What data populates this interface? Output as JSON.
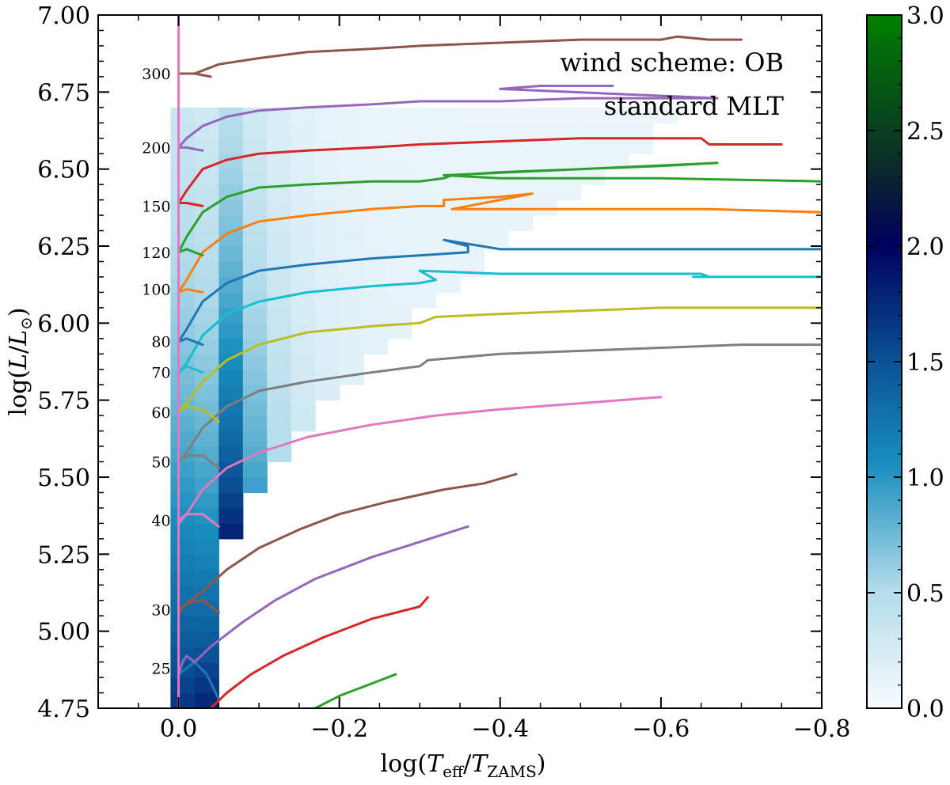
{
  "chart_data": {
    "type": "heatmap",
    "title": "",
    "xlabel": "log(T_eff/T_ZAMS)",
    "ylabel": "log(L/L_⊙)",
    "xlim": [
      0.1,
      -0.8
    ],
    "ylim": [
      4.75,
      7.0
    ],
    "x_ticks": [
      "0.0",
      "−0.2",
      "−0.4",
      "−0.6",
      "−0.8"
    ],
    "x_tick_values": [
      0.0,
      -0.2,
      -0.4,
      -0.6,
      -0.8
    ],
    "y_ticks": [
      "4.75",
      "5.00",
      "5.25",
      "5.50",
      "5.75",
      "6.00",
      "6.25",
      "6.50",
      "6.75",
      "7.00"
    ],
    "y_tick_values": [
      4.75,
      5.0,
      5.25,
      5.5,
      5.75,
      6.0,
      6.25,
      6.5,
      6.75,
      7.0
    ],
    "annotations": [
      "wind scheme: OB",
      "standard MLT"
    ],
    "colorbar": {
      "min": 0.0,
      "max": 3.0,
      "ticks": [
        "0.0",
        "0.5",
        "1.0",
        "1.5",
        "2.0",
        "2.5",
        "3.0"
      ],
      "tick_values": [
        0.0,
        0.5,
        1.0,
        1.5,
        2.0,
        2.5,
        3.0
      ],
      "colors": [
        "#f7fbff",
        "#0b88b8",
        "#00005e",
        "#006600",
        "#008000"
      ]
    },
    "zams_line": {
      "x": 0.0,
      "color": "#e377c2"
    },
    "mass_labels": [
      {
        "text": "25",
        "y": 4.88
      },
      {
        "text": "30",
        "y": 5.07
      },
      {
        "text": "40",
        "y": 5.36
      },
      {
        "text": "50",
        "y": 5.55
      },
      {
        "text": "60",
        "y": 5.71
      },
      {
        "text": "70",
        "y": 5.84
      },
      {
        "text": "80",
        "y": 5.94
      },
      {
        "text": "100",
        "y": 6.11
      },
      {
        "text": "120",
        "y": 6.23
      },
      {
        "text": "150",
        "y": 6.38
      },
      {
        "text": "200",
        "y": 6.57
      },
      {
        "text": "300",
        "y": 6.81
      }
    ],
    "series": [
      {
        "label": "25",
        "color": "#1f77b4",
        "x": [
          0.0,
          -0.01,
          -0.02,
          -0.035,
          -0.05
        ],
        "y": [
          4.86,
          4.88,
          4.9,
          4.86,
          4.78
        ]
      },
      {
        "label": "25",
        "color": "#2ca02c",
        "x": [
          -0.17,
          -0.2,
          -0.24,
          -0.27
        ],
        "y": [
          4.75,
          4.79,
          4.83,
          4.86
        ]
      },
      {
        "label": "30",
        "color": "#8c564b",
        "x": [
          0.0,
          -0.01,
          -0.03,
          -0.05
        ],
        "y": [
          5.06,
          5.09,
          5.1,
          5.06
        ]
      },
      {
        "label": "30",
        "color": "#9467bd",
        "x": [
          0.0,
          -0.005,
          -0.01,
          -0.02,
          -0.04,
          -0.08,
          -0.12,
          -0.17,
          -0.24,
          -0.3,
          -0.36
        ],
        "y": [
          4.86,
          4.9,
          4.92,
          4.9,
          4.95,
          5.03,
          5.1,
          5.17,
          5.24,
          5.29,
          5.34
        ]
      },
      {
        "label": "30",
        "color": "#d62728",
        "x": [
          -0.04,
          -0.06,
          -0.09,
          -0.13,
          -0.18,
          -0.24,
          -0.3,
          -0.31
        ],
        "y": [
          4.75,
          4.8,
          4.86,
          4.92,
          4.98,
          5.04,
          5.08,
          5.11
        ]
      },
      {
        "label": "40",
        "color": "#8c564b",
        "x": [
          0.0,
          -0.01,
          -0.03,
          -0.06,
          -0.1,
          -0.15,
          -0.2,
          -0.26,
          -0.33,
          -0.38,
          -0.42
        ],
        "y": [
          5.07,
          5.09,
          5.13,
          5.2,
          5.27,
          5.33,
          5.38,
          5.42,
          5.46,
          5.48,
          5.51
        ]
      },
      {
        "label": "40",
        "color": "#e377c2",
        "x": [
          0.0,
          -0.01,
          -0.03,
          -0.05
        ],
        "y": [
          5.36,
          5.38,
          5.38,
          5.34
        ]
      },
      {
        "label": "50",
        "color": "#e377c2",
        "x": [
          0.0,
          -0.01,
          -0.03,
          -0.06,
          -0.1,
          -0.16,
          -0.24,
          -0.32,
          -0.4,
          -0.5,
          -0.6
        ],
        "y": [
          5.35,
          5.38,
          5.46,
          5.53,
          5.58,
          5.63,
          5.67,
          5.7,
          5.72,
          5.74,
          5.76
        ]
      },
      {
        "label": "50",
        "color": "#7f7f7f",
        "x": [
          0.0,
          -0.01,
          -0.03,
          -0.05
        ],
        "y": [
          5.55,
          5.57,
          5.57,
          5.53
        ]
      },
      {
        "label": "60",
        "color": "#7f7f7f",
        "x": [
          0.0,
          -0.01,
          -0.03,
          -0.06,
          -0.1,
          -0.16,
          -0.24,
          -0.3,
          -0.31,
          -0.4,
          -0.5,
          -0.6,
          -0.7,
          -0.8
        ],
        "y": [
          5.55,
          5.58,
          5.66,
          5.73,
          5.78,
          5.81,
          5.84,
          5.86,
          5.88,
          5.9,
          5.91,
          5.92,
          5.93,
          5.93
        ]
      },
      {
        "label": "60",
        "color": "#bcbd22",
        "x": [
          0.0,
          -0.01,
          -0.03,
          -0.05
        ],
        "y": [
          5.71,
          5.73,
          5.72,
          5.68
        ]
      },
      {
        "label": "70",
        "color": "#bcbd22",
        "x": [
          0.0,
          -0.01,
          -0.03,
          -0.06,
          -0.1,
          -0.16,
          -0.24,
          -0.3,
          -0.32,
          -0.4,
          -0.5,
          -0.6,
          -0.66,
          -0.8
        ],
        "y": [
          5.71,
          5.74,
          5.81,
          5.88,
          5.93,
          5.97,
          5.99,
          6.0,
          6.02,
          6.03,
          6.04,
          6.05,
          6.05,
          6.05
        ]
      },
      {
        "label": "70",
        "color": "#17becf",
        "x": [
          0.0,
          -0.01,
          -0.03
        ],
        "y": [
          5.84,
          5.86,
          5.84
        ]
      },
      {
        "label": "80",
        "color": "#17becf",
        "x": [
          0.0,
          -0.01,
          -0.03,
          -0.06,
          -0.1,
          -0.16,
          -0.24,
          -0.3,
          -0.32,
          -0.3,
          -0.4,
          -0.5,
          -0.6,
          -0.65,
          -0.66,
          -0.64,
          -0.8
        ],
        "y": [
          5.84,
          5.87,
          5.96,
          6.03,
          6.07,
          6.1,
          6.12,
          6.13,
          6.14,
          6.17,
          6.16,
          6.16,
          6.16,
          6.16,
          6.15,
          6.15,
          6.15
        ]
      },
      {
        "label": "80",
        "color": "#1f77b4",
        "x": [
          0.0,
          -0.01,
          -0.03
        ],
        "y": [
          5.94,
          5.95,
          5.93
        ]
      },
      {
        "label": "100",
        "color": "#1f77b4",
        "x": [
          0.0,
          -0.01,
          -0.03,
          -0.06,
          -0.1,
          -0.16,
          -0.24,
          -0.3,
          -0.36,
          -0.36,
          -0.33,
          -0.4,
          -0.5,
          -0.6,
          -0.8
        ],
        "y": [
          5.94,
          5.98,
          6.07,
          6.13,
          6.17,
          6.19,
          6.21,
          6.22,
          6.23,
          6.25,
          6.27,
          6.24,
          6.24,
          6.24,
          6.24
        ]
      },
      {
        "label": "100",
        "color": "#ff7f0e",
        "x": [
          0.0,
          -0.01,
          -0.03
        ],
        "y": [
          6.1,
          6.11,
          6.1
        ]
      },
      {
        "label": "120",
        "color": "#ff7f0e",
        "x": [
          0.0,
          -0.01,
          -0.03,
          -0.06,
          -0.1,
          -0.16,
          -0.24,
          -0.3,
          -0.33,
          -0.33,
          -0.4,
          -0.44,
          -0.34,
          -0.4,
          -0.5,
          -0.6,
          -0.66,
          -0.8
        ],
        "y": [
          6.1,
          6.14,
          6.23,
          6.29,
          6.33,
          6.35,
          6.37,
          6.38,
          6.38,
          6.4,
          6.41,
          6.42,
          6.37,
          6.37,
          6.37,
          6.37,
          6.37,
          6.36
        ]
      },
      {
        "label": "120",
        "color": "#2ca02c",
        "x": [
          0.0,
          -0.01,
          -0.03
        ],
        "y": [
          6.23,
          6.24,
          6.22
        ]
      },
      {
        "label": "150",
        "color": "#2ca02c",
        "x": [
          0.0,
          -0.01,
          -0.03,
          -0.06,
          -0.1,
          -0.16,
          -0.24,
          -0.3,
          -0.33,
          -0.34,
          -0.4,
          -0.5,
          -0.6,
          -0.67,
          -0.33,
          -0.4,
          -0.5,
          -0.6,
          -0.8
        ],
        "y": [
          6.23,
          6.28,
          6.36,
          6.41,
          6.44,
          6.45,
          6.46,
          6.46,
          6.47,
          6.48,
          6.49,
          6.5,
          6.51,
          6.52,
          6.48,
          6.47,
          6.47,
          6.47,
          6.46
        ]
      },
      {
        "label": "150",
        "color": "#d62728",
        "x": [
          0.0,
          -0.01,
          -0.03
        ],
        "y": [
          6.39,
          6.39,
          6.38
        ]
      },
      {
        "label": "200",
        "color": "#d62728",
        "x": [
          0.0,
          -0.01,
          -0.03,
          -0.06,
          -0.1,
          -0.16,
          -0.24,
          -0.3,
          -0.4,
          -0.5,
          -0.6,
          -0.65,
          -0.66,
          -0.75
        ],
        "y": [
          6.39,
          6.43,
          6.5,
          6.53,
          6.55,
          6.56,
          6.57,
          6.58,
          6.59,
          6.6,
          6.6,
          6.6,
          6.58,
          6.58
        ]
      },
      {
        "label": "200",
        "color": "#9467bd",
        "x": [
          0.0,
          -0.01,
          -0.03
        ],
        "y": [
          6.57,
          6.57,
          6.56
        ]
      },
      {
        "label": "300",
        "color": "#9467bd",
        "x": [
          0.0,
          -0.01,
          -0.03,
          -0.06,
          -0.1,
          -0.16,
          -0.24,
          -0.3,
          -0.4,
          -0.5,
          -0.6,
          -0.67,
          -0.4,
          -0.45,
          -0.54
        ],
        "y": [
          6.57,
          6.6,
          6.64,
          6.67,
          6.69,
          6.7,
          6.71,
          6.72,
          6.72,
          6.73,
          6.73,
          6.73,
          6.76,
          6.77,
          6.77
        ]
      },
      {
        "label": "300",
        "color": "#8c564b",
        "x": [
          0.0,
          -0.02,
          -0.04,
          -0.02,
          -0.05,
          -0.1,
          -0.16,
          -0.24,
          -0.3,
          -0.4,
          -0.5,
          -0.6,
          -0.62,
          -0.66,
          -0.7
        ],
        "y": [
          6.81,
          6.81,
          6.8,
          6.81,
          6.84,
          6.86,
          6.88,
          6.89,
          6.9,
          6.91,
          6.92,
          6.92,
          6.93,
          6.92,
          6.92
        ]
      }
    ]
  }
}
